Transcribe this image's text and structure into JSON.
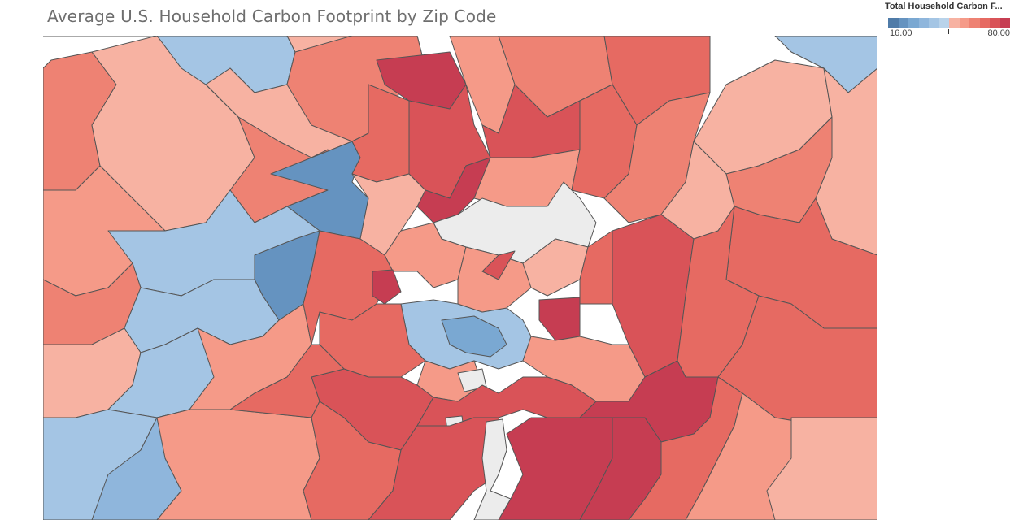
{
  "title": "Average U.S. Household Carbon Footprint by Zip Code",
  "legend": {
    "title": "Total Household Carbon F...",
    "min_label": "16.00",
    "max_label": "80.00",
    "min_value": 16,
    "max_value": 80,
    "steps": [
      "#4f7ba8",
      "#6593c0",
      "#7aa8d2",
      "#8fb6dc",
      "#a4c5e4",
      "#b9d3ea",
      "#f7b2a2",
      "#f59a88",
      "#ee8273",
      "#e66a62",
      "#d95358",
      "#c63d52"
    ]
  },
  "colors": {
    "no_data": "#ececec",
    "border": "#555555"
  }
}
